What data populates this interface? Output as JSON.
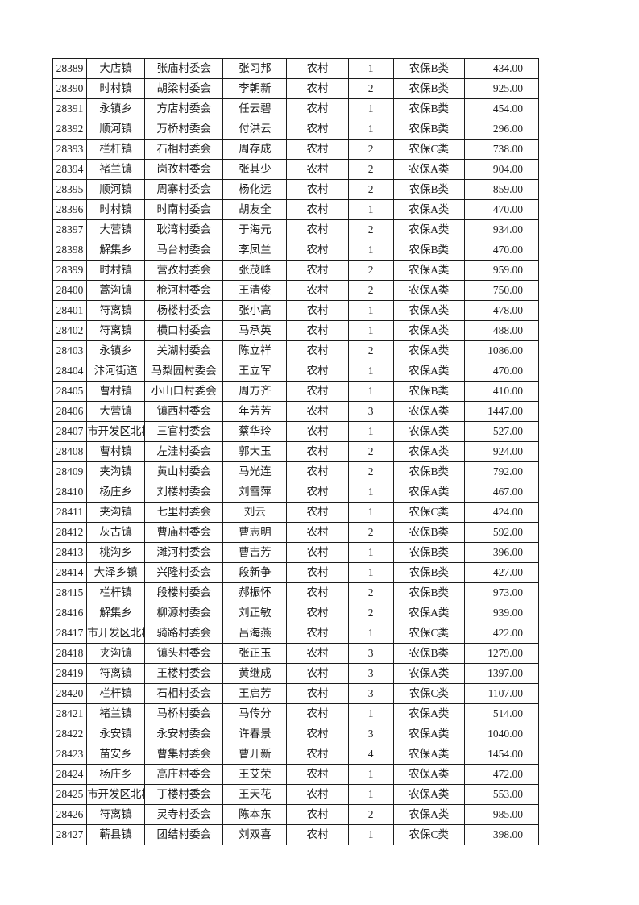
{
  "colors": {
    "page_background": "#ffffff",
    "grid_border": "#1c1c1c",
    "text": "#1f1f1f"
  },
  "table": {
    "column_keys": [
      "id",
      "town",
      "village",
      "name",
      "residence",
      "count",
      "category",
      "amount"
    ],
    "rows": [
      {
        "id": "28389",
        "town": "大店镇",
        "village": "张庙村委会",
        "name": "张习邦",
        "residence": "农村",
        "count": "1",
        "category": "农保B类",
        "amount": "434.00"
      },
      {
        "id": "28390",
        "town": "时村镇",
        "village": "胡梁村委会",
        "name": "李朝新",
        "residence": "农村",
        "count": "2",
        "category": "农保B类",
        "amount": "925.00"
      },
      {
        "id": "28391",
        "town": "永镇乡",
        "village": "方店村委会",
        "name": "任云碧",
        "residence": "农村",
        "count": "1",
        "category": "农保B类",
        "amount": "454.00"
      },
      {
        "id": "28392",
        "town": "顺河镇",
        "village": "万桥村委会",
        "name": "付洪云",
        "residence": "农村",
        "count": "1",
        "category": "农保B类",
        "amount": "296.00"
      },
      {
        "id": "28393",
        "town": "栏杆镇",
        "village": "石相村委会",
        "name": "周存成",
        "residence": "农村",
        "count": "2",
        "category": "农保C类",
        "amount": "738.00"
      },
      {
        "id": "28394",
        "town": "褚兰镇",
        "village": "岗孜村委会",
        "name": "张其少",
        "residence": "农村",
        "count": "2",
        "category": "农保A类",
        "amount": "904.00"
      },
      {
        "id": "28395",
        "town": "顺河镇",
        "village": "周寨村委会",
        "name": "杨化远",
        "residence": "农村",
        "count": "2",
        "category": "农保B类",
        "amount": "859.00"
      },
      {
        "id": "28396",
        "town": "时村镇",
        "village": "时南村委会",
        "name": "胡友全",
        "residence": "农村",
        "count": "1",
        "category": "农保A类",
        "amount": "470.00"
      },
      {
        "id": "28397",
        "town": "大营镇",
        "village": "耿湾村委会",
        "name": "于海元",
        "residence": "农村",
        "count": "2",
        "category": "农保A类",
        "amount": "934.00"
      },
      {
        "id": "28398",
        "town": "解集乡",
        "village": "马台村委会",
        "name": "李凤兰",
        "residence": "农村",
        "count": "1",
        "category": "农保B类",
        "amount": "470.00"
      },
      {
        "id": "28399",
        "town": "时村镇",
        "village": "营孜村委会",
        "name": "张茂峰",
        "residence": "农村",
        "count": "2",
        "category": "农保A类",
        "amount": "959.00"
      },
      {
        "id": "28400",
        "town": "蒿沟镇",
        "village": "枪河村委会",
        "name": "王清俊",
        "residence": "农村",
        "count": "2",
        "category": "农保A类",
        "amount": "750.00"
      },
      {
        "id": "28401",
        "town": "符离镇",
        "village": "杨楼村委会",
        "name": "张小高",
        "residence": "农村",
        "count": "1",
        "category": "农保A类",
        "amount": "478.00"
      },
      {
        "id": "28402",
        "town": "符离镇",
        "village": "横口村委会",
        "name": "马承英",
        "residence": "农村",
        "count": "1",
        "category": "农保A类",
        "amount": "488.00"
      },
      {
        "id": "28403",
        "town": "永镇乡",
        "village": "关湖村委会",
        "name": "陈立祥",
        "residence": "农村",
        "count": "2",
        "category": "农保A类",
        "amount": "1086.00"
      },
      {
        "id": "28404",
        "town": "汴河街道",
        "village": "马梨园村委会",
        "name": "王立军",
        "residence": "农村",
        "count": "1",
        "category": "农保A类",
        "amount": "470.00"
      },
      {
        "id": "28405",
        "town": "曹村镇",
        "village": "小山口村委会",
        "name": "周方齐",
        "residence": "农村",
        "count": "1",
        "category": "农保B类",
        "amount": "410.00"
      },
      {
        "id": "28406",
        "town": "大营镇",
        "village": "镇西村委会",
        "name": "年芳芳",
        "residence": "农村",
        "count": "3",
        "category": "农保A类",
        "amount": "1447.00"
      },
      {
        "id": "28407",
        "town": "市开发区北杨寨",
        "village": "三官村委会",
        "name": "蔡华玲",
        "residence": "农村",
        "count": "1",
        "category": "农保A类",
        "amount": "527.00"
      },
      {
        "id": "28408",
        "town": "曹村镇",
        "village": "左洼村委会",
        "name": "郭大玉",
        "residence": "农村",
        "count": "2",
        "category": "农保A类",
        "amount": "924.00"
      },
      {
        "id": "28409",
        "town": "夹沟镇",
        "village": "黄山村委会",
        "name": "马光连",
        "residence": "农村",
        "count": "2",
        "category": "农保B类",
        "amount": "792.00"
      },
      {
        "id": "28410",
        "town": "杨庄乡",
        "village": "刘楼村委会",
        "name": "刘雪萍",
        "residence": "农村",
        "count": "1",
        "category": "农保A类",
        "amount": "467.00"
      },
      {
        "id": "28411",
        "town": "夹沟镇",
        "village": "七里村委会",
        "name": "刘云",
        "residence": "农村",
        "count": "1",
        "category": "农保C类",
        "amount": "424.00"
      },
      {
        "id": "28412",
        "town": "灰古镇",
        "village": "曹庙村委会",
        "name": "曹志明",
        "residence": "农村",
        "count": "2",
        "category": "农保B类",
        "amount": "592.00"
      },
      {
        "id": "28413",
        "town": "桃沟乡",
        "village": "濉河村委会",
        "name": "曹吉芳",
        "residence": "农村",
        "count": "1",
        "category": "农保B类",
        "amount": "396.00"
      },
      {
        "id": "28414",
        "town": "大泽乡镇",
        "village": "兴隆村委会",
        "name": "段新争",
        "residence": "农村",
        "count": "1",
        "category": "农保B类",
        "amount": "427.00"
      },
      {
        "id": "28415",
        "town": "栏杆镇",
        "village": "段楼村委会",
        "name": "郝振怀",
        "residence": "农村",
        "count": "2",
        "category": "农保B类",
        "amount": "973.00"
      },
      {
        "id": "28416",
        "town": "解集乡",
        "village": "柳源村委会",
        "name": "刘正敏",
        "residence": "农村",
        "count": "2",
        "category": "农保A类",
        "amount": "939.00"
      },
      {
        "id": "28417",
        "town": "市开发区北杨寨",
        "village": "骑路村委会",
        "name": "吕海燕",
        "residence": "农村",
        "count": "1",
        "category": "农保C类",
        "amount": "422.00"
      },
      {
        "id": "28418",
        "town": "夹沟镇",
        "village": "镇头村委会",
        "name": "张正玉",
        "residence": "农村",
        "count": "3",
        "category": "农保B类",
        "amount": "1279.00"
      },
      {
        "id": "28419",
        "town": "符离镇",
        "village": "王楼村委会",
        "name": "黄继成",
        "residence": "农村",
        "count": "3",
        "category": "农保A类",
        "amount": "1397.00"
      },
      {
        "id": "28420",
        "town": "栏杆镇",
        "village": "石相村委会",
        "name": "王启芳",
        "residence": "农村",
        "count": "3",
        "category": "农保C类",
        "amount": "1107.00"
      },
      {
        "id": "28421",
        "town": "褚兰镇",
        "village": "马桥村委会",
        "name": "马传分",
        "residence": "农村",
        "count": "1",
        "category": "农保A类",
        "amount": "514.00"
      },
      {
        "id": "28422",
        "town": "永安镇",
        "village": "永安村委会",
        "name": "许春景",
        "residence": "农村",
        "count": "3",
        "category": "农保A类",
        "amount": "1040.00"
      },
      {
        "id": "28423",
        "town": "苗安乡",
        "village": "曹集村委会",
        "name": "曹开新",
        "residence": "农村",
        "count": "4",
        "category": "农保A类",
        "amount": "1454.00"
      },
      {
        "id": "28424",
        "town": "杨庄乡",
        "village": "高庄村委会",
        "name": "王艾荣",
        "residence": "农村",
        "count": "1",
        "category": "农保A类",
        "amount": "472.00"
      },
      {
        "id": "28425",
        "town": "市开发区北杨寨",
        "village": "丁楼村委会",
        "name": "王天花",
        "residence": "农村",
        "count": "1",
        "category": "农保A类",
        "amount": "553.00"
      },
      {
        "id": "28426",
        "town": "符离镇",
        "village": "灵寺村委会",
        "name": "陈本东",
        "residence": "农村",
        "count": "2",
        "category": "农保A类",
        "amount": "985.00"
      },
      {
        "id": "28427",
        "town": "蕲县镇",
        "village": "团结村委会",
        "name": "刘双喜",
        "residence": "农村",
        "count": "1",
        "category": "农保C类",
        "amount": "398.00"
      }
    ]
  }
}
